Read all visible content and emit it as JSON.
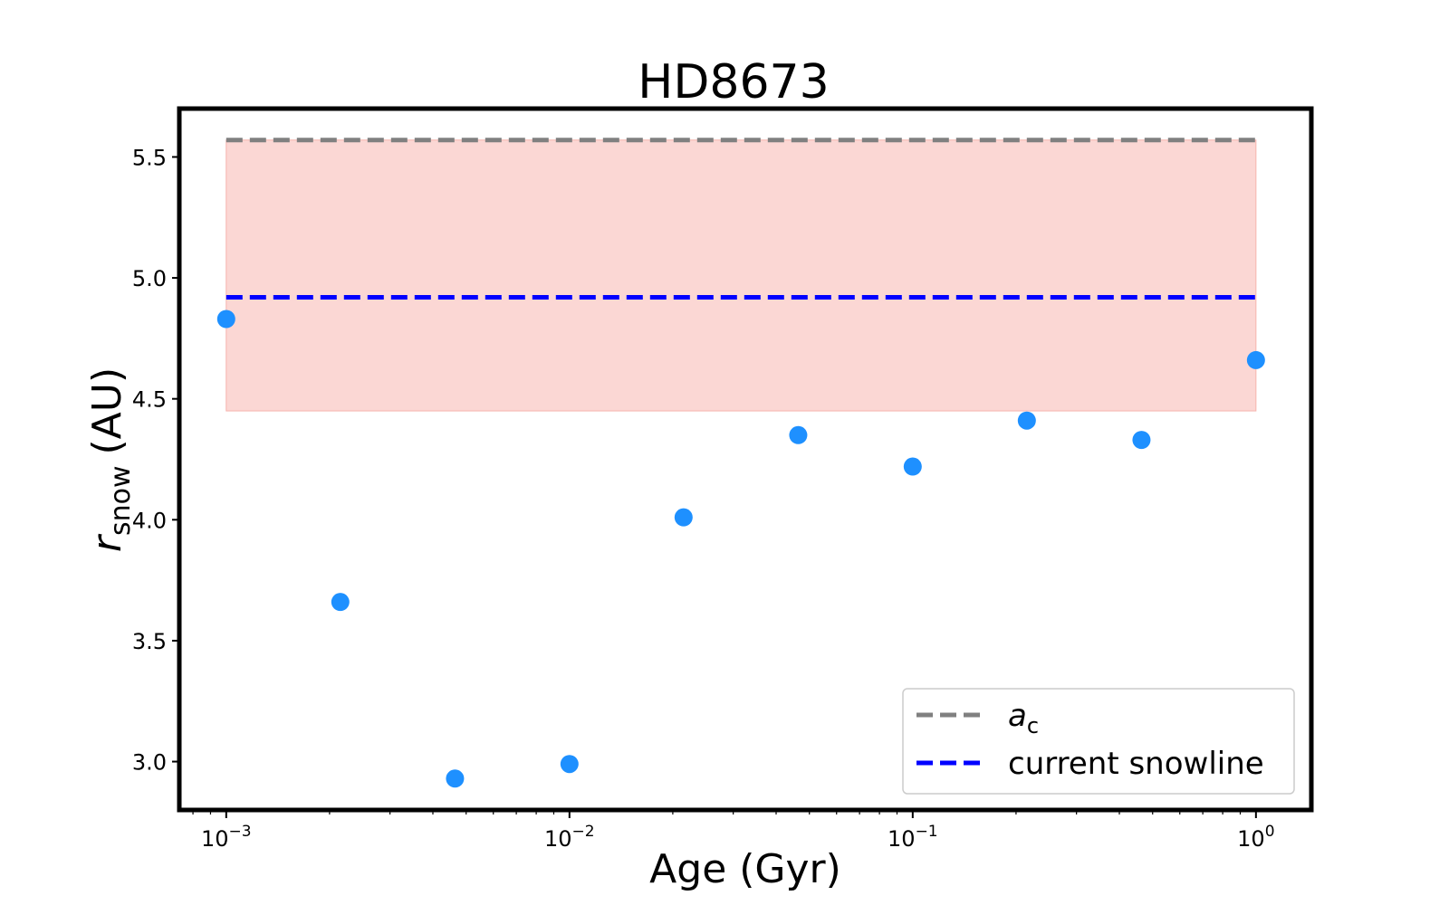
{
  "chart_data": {
    "type": "scatter",
    "title": "HD8673",
    "xlabel": "Age (Gyr)",
    "ylabel": {
      "base": "r",
      "subscript": "snow",
      "unit": "(AU)"
    },
    "x_scale": "log",
    "xlim": [
      0.00073,
      1.45
    ],
    "ylim": [
      2.8,
      5.7
    ],
    "x_ticks": [
      {
        "value": 0.001,
        "base": "10",
        "exp": "−3"
      },
      {
        "value": 0.01,
        "base": "10",
        "exp": "−2"
      },
      {
        "value": 0.1,
        "base": "10",
        "exp": "−1"
      },
      {
        "value": 1,
        "base": "10",
        "exp": "0"
      }
    ],
    "y_ticks": [
      {
        "value": 3.0,
        "label": "3.0"
      },
      {
        "value": 3.5,
        "label": "3.5"
      },
      {
        "value": 4.0,
        "label": "4.0"
      },
      {
        "value": 4.5,
        "label": "4.5"
      },
      {
        "value": 5.0,
        "label": "5.0"
      },
      {
        "value": 5.5,
        "label": "5.5"
      }
    ],
    "grid": false,
    "legend_position": "lower-right",
    "points": {
      "color": "#1e90ff",
      "x": [
        0.001,
        0.00215,
        0.00464,
        0.01,
        0.0215,
        0.0464,
        0.1,
        0.215,
        0.464,
        1.0
      ],
      "y": [
        4.83,
        3.66,
        2.93,
        2.99,
        4.01,
        4.35,
        4.22,
        4.41,
        4.33,
        4.66
      ]
    },
    "shaded_band": {
      "x_range": [
        0.001,
        1.0
      ],
      "y_range": [
        4.45,
        5.57
      ],
      "color": "#fbd5d2"
    },
    "lines": [
      {
        "name": "a",
        "name_subscript": "c",
        "y": 5.57,
        "x_range": [
          0.001,
          1.0
        ],
        "color": "#808080",
        "style": "dashed"
      },
      {
        "name": "current snowline",
        "y": 4.92,
        "x_range": [
          0.001,
          1.0
        ],
        "color": "#0000ff",
        "style": "dashed"
      }
    ]
  }
}
